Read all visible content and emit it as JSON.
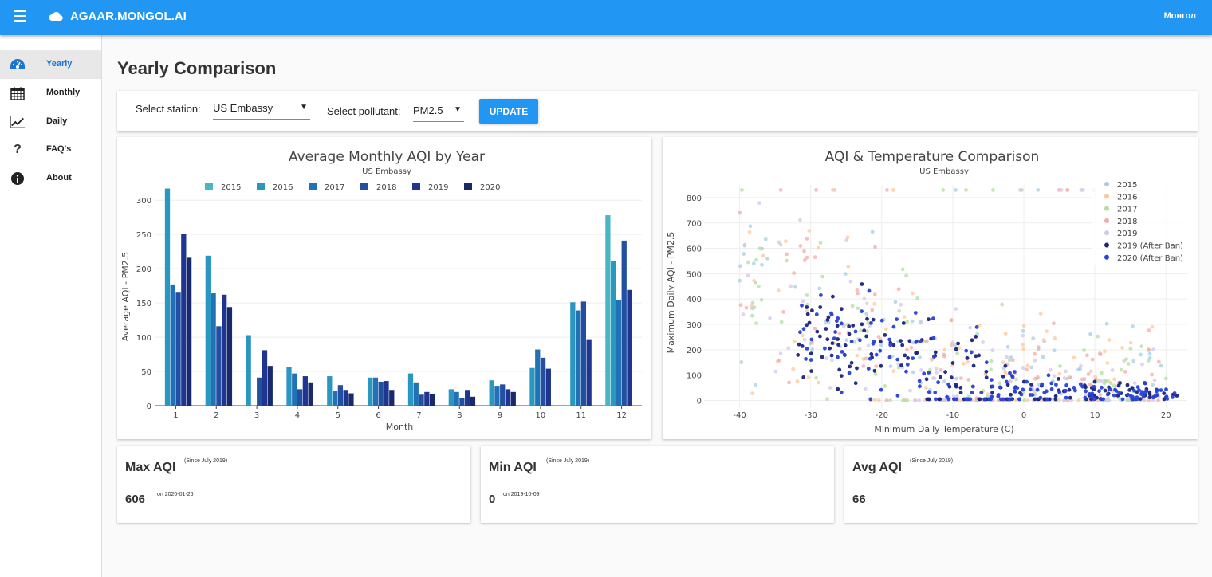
{
  "header": {
    "brand": "AGAAR.MONGOL.AI",
    "language": "Монгол"
  },
  "sidebar": {
    "items": [
      {
        "label": "Yearly",
        "icon": "dashboard-gauge-icon"
      },
      {
        "label": "Monthly",
        "icon": "calendar-icon"
      },
      {
        "label": "Daily",
        "icon": "trend-chart-icon"
      },
      {
        "label": "FAQ's",
        "icon": "question-icon"
      },
      {
        "label": "About",
        "icon": "info-icon"
      }
    ]
  },
  "page": {
    "title": "Yearly Comparison"
  },
  "controls": {
    "station_label": "Select station:",
    "station_value": "US Embassy",
    "pollutant_label": "Select pollutant:",
    "pollutant_value": "PM2.5",
    "update_label": "UPDATE"
  },
  "colors": {
    "accent": "#2196f3"
  },
  "chart_data": [
    {
      "type": "bar",
      "title": "Average Monthly AQI by Year",
      "subtitle": "US Embassy",
      "xlabel": "Month",
      "ylabel": "Average AQI - PM2.5",
      "ylim": [
        0,
        320
      ],
      "yticks": [
        0,
        50,
        100,
        150,
        200,
        250,
        300
      ],
      "legend": "top",
      "categories": [
        "1",
        "2",
        "3",
        "4",
        "5",
        "6",
        "7",
        "8",
        "9",
        "10",
        "11",
        "12"
      ],
      "series": [
        {
          "name": "2015",
          "color": "#4ab5c4",
          "values": [
            null,
            null,
            null,
            null,
            null,
            null,
            null,
            null,
            null,
            null,
            null,
            278
          ]
        },
        {
          "name": "2016",
          "color": "#2a97c0",
          "values": [
            317,
            219,
            103,
            56,
            43,
            41,
            47,
            24,
            37,
            55,
            151,
            211
          ]
        },
        {
          "name": "2017",
          "color": "#2171b5",
          "values": [
            177,
            164,
            null,
            47,
            22,
            41,
            34,
            20,
            29,
            82,
            139,
            154
          ]
        },
        {
          "name": "2018",
          "color": "#234fa0",
          "values": [
            165,
            116,
            41,
            24,
            30,
            35,
            16,
            11,
            31,
            70,
            152,
            241
          ]
        },
        {
          "name": "2019",
          "color": "#1f3590",
          "values": [
            251,
            162,
            81,
            43,
            23,
            36,
            20,
            23,
            24,
            54,
            97,
            169
          ]
        },
        {
          "name": "2020",
          "color": "#182a6b",
          "values": [
            216,
            144,
            58,
            34,
            18,
            23,
            17,
            13,
            20,
            null,
            null,
            null
          ]
        }
      ]
    },
    {
      "type": "scatter",
      "title": "AQI & Temperature Comparison",
      "subtitle": "US Embassy",
      "xlabel": "Minimum Daily Temperature (C)",
      "ylabel": "Maximum Daily AQI - PM2.5",
      "xlim": [
        -45,
        23
      ],
      "ylim": [
        -30,
        850
      ],
      "xticks": [
        -40,
        -30,
        -20,
        -10,
        0,
        10,
        20
      ],
      "yticks": [
        0,
        100,
        200,
        300,
        400,
        500,
        600,
        700,
        800
      ],
      "legend": "top-right",
      "series": [
        {
          "name": "2015",
          "color": "#a6cde3"
        },
        {
          "name": "2016",
          "color": "#fdc998"
        },
        {
          "name": "2017",
          "color": "#b2dfa0"
        },
        {
          "name": "2018",
          "color": "#f4aba8"
        },
        {
          "name": "2019",
          "color": "#d6c6e8"
        },
        {
          "name": "2019 (After Ban)",
          "color": "#1a237e"
        },
        {
          "name": "2020 (After Ban)",
          "color": "#2742d8"
        }
      ]
    }
  ],
  "stats": [
    {
      "title": "Max AQI",
      "since": "(Since July 2019)",
      "value": "606",
      "date": "on 2020-01-26"
    },
    {
      "title": "Min AQI",
      "since": "(Since July 2019)",
      "value": "0",
      "date": "on 2019-10-09"
    },
    {
      "title": "Avg AQI",
      "since": "(Since July 2019)",
      "value": "66"
    }
  ]
}
